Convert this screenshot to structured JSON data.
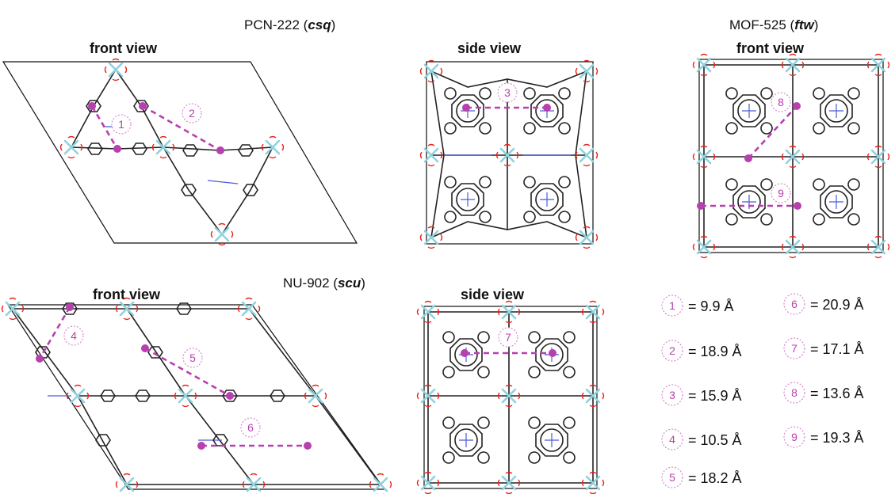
{
  "colors": {
    "carbon": "#222222",
    "nitrogen": "#4a5cd8",
    "oxygen": "#e8231d",
    "zirconium": "#8fd3de",
    "distance": "#b83fae"
  },
  "headings": {
    "pcn222": {
      "name": "PCN-222 (",
      "topology": "csq",
      "close": ")"
    },
    "mof525": {
      "name": "MOF-525 (",
      "topology": "ftw",
      "close": ")"
    },
    "nu902": {
      "name": "NU-902 (",
      "topology": "scu",
      "close": ")"
    }
  },
  "views": {
    "pcn222_front": "front view",
    "pcn222_side": "side view",
    "mof525_front": "front view",
    "nu902_front": "front view",
    "nu902_side": "side view"
  },
  "markers": [
    "1",
    "2",
    "3",
    "4",
    "5",
    "6",
    "7",
    "8",
    "9"
  ],
  "distances": [
    {
      "id": "1",
      "value": "= 9.9 Å"
    },
    {
      "id": "2",
      "value": "= 18.9 Å"
    },
    {
      "id": "3",
      "value": "= 15.9 Å"
    },
    {
      "id": "4",
      "value": "= 10.5 Å"
    },
    {
      "id": "5",
      "value": "= 18.2 Å"
    },
    {
      "id": "6",
      "value": "= 20.9 Å"
    },
    {
      "id": "7",
      "value": "= 17.1 Å"
    },
    {
      "id": "8",
      "value": "= 13.6 Å"
    },
    {
      "id": "9",
      "value": "= 19.3 Å"
    }
  ]
}
